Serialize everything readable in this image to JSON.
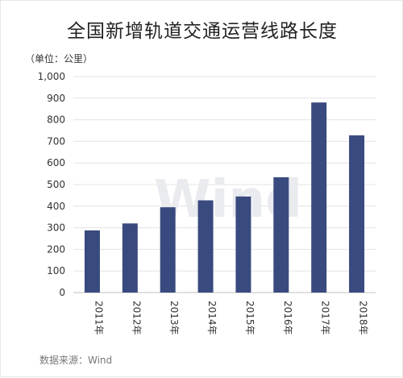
{
  "chart_data": {
    "type": "bar",
    "title": "全国新增轨道交通运营线路长度",
    "unit_label": "（单位：公里）",
    "categories": [
      "2011年",
      "2012年",
      "2013年",
      "2014年",
      "2015年",
      "2016年",
      "2017年",
      "2018年"
    ],
    "values": [
      288,
      320,
      395,
      427,
      445,
      534,
      880,
      728
    ],
    "ylim": [
      0,
      1000
    ],
    "yticks": [
      0,
      100,
      200,
      300,
      400,
      500,
      600,
      700,
      800,
      900,
      1000
    ],
    "ytick_labels": [
      "0",
      "100",
      "200",
      "300",
      "400",
      "500",
      "600",
      "700",
      "800",
      "900",
      "1,000"
    ],
    "grid": true,
    "bar_color": "#394a7f",
    "source": "数据来源：Wind",
    "watermark": "Wind"
  }
}
